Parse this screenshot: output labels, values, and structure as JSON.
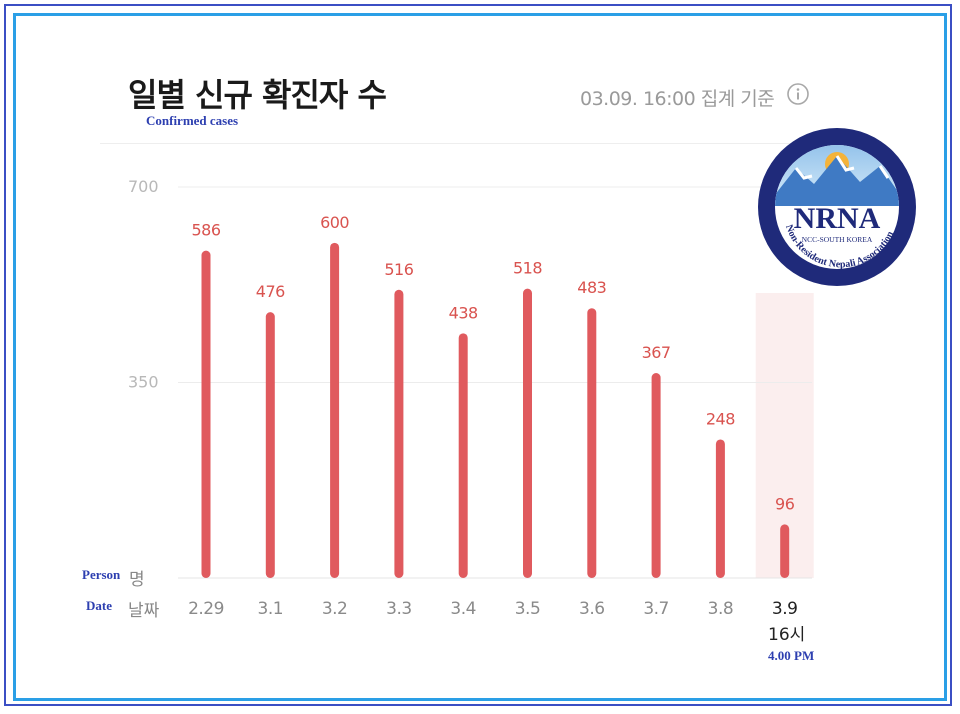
{
  "header": {
    "title": "일별 신규 확진자 수",
    "subtitle_en": "Confirmed cases",
    "timestamp": "03.09. 16:00 집계 기준"
  },
  "axis": {
    "unit_en": "Person",
    "unit_ko": "명",
    "date_en": "Date",
    "date_ko": "날짜",
    "last_note": "4.00 PM"
  },
  "logo": {
    "name": "NRNA",
    "sub": "NCC-SOUTH KOREA",
    "ring": "Non-Resident Nepali Association"
  },
  "colors": {
    "bar": "#e05a5e",
    "label": "#d9534f",
    "highlight": "#fbeeee",
    "frame_outer": "#3b4fc4",
    "frame_inner": "#2a9fe6",
    "logo_ring": "#1f2a7a"
  },
  "chart_data": {
    "type": "bar",
    "categories": [
      "2.29",
      "3.1",
      "3.2",
      "3.3",
      "3.4",
      "3.5",
      "3.6",
      "3.7",
      "3.8",
      "3.9"
    ],
    "category_sublabels": [
      "",
      "",
      "",
      "",
      "",
      "",
      "",
      "",
      "",
      "16시"
    ],
    "values": [
      586,
      476,
      600,
      516,
      438,
      518,
      483,
      367,
      248,
      96
    ],
    "yticks": [
      350,
      700
    ],
    "ylim": [
      0,
      700
    ],
    "highlight_index": 9,
    "title": "일별 신규 확진자 수",
    "grid": true
  }
}
